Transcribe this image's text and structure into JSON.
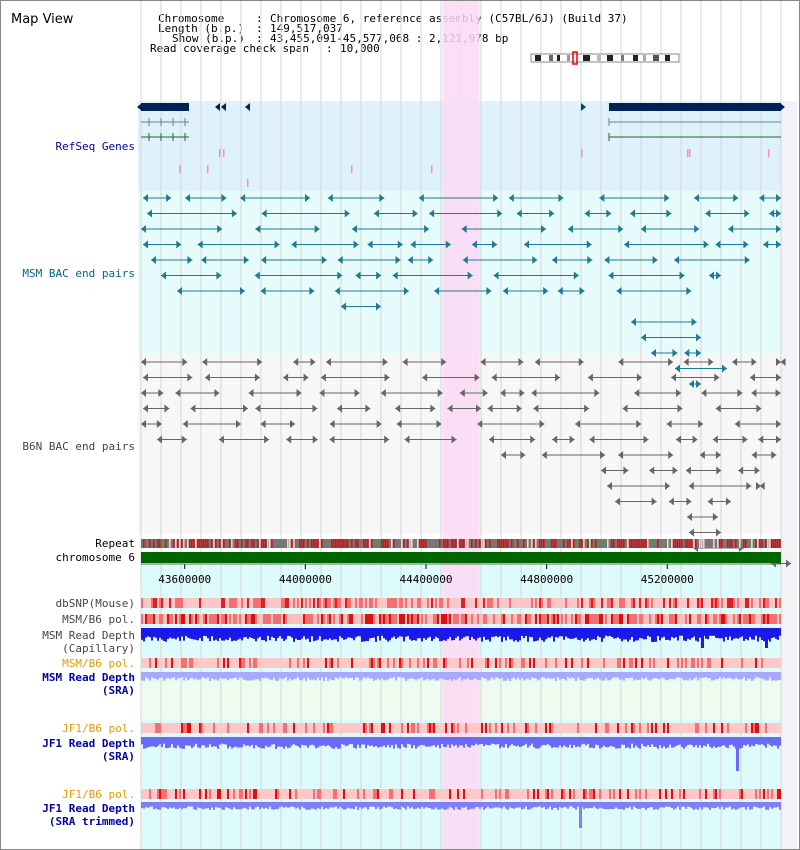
{
  "title": "Map View",
  "header": {
    "chromosome_label": "Chromosome",
    "chromosome_value": "Chromosome 6, reference assembly (C57BL/6J) (Build 37)",
    "length_label": "Length (b.p.)",
    "length_value": "149,517,037",
    "show_label": "Show (b.p.)",
    "show_value": "43,455,091-45,577,068 : 2,121,978 bp",
    "coverage_label": "Read coverage check span",
    "coverage_value": "10,000",
    "sep": ":"
  },
  "tracks": {
    "refseq": "RefSeq Genes",
    "msm_bac": "MSM BAC end pairs",
    "b6n_bac": "B6N BAC end pairs",
    "repeat": "Repeat",
    "chromosome": "chromosome 6",
    "dbsnp": "dbSNP(Mouse)",
    "msm_b6_pol": "MSM/B6 pol.",
    "msm_depth_cap_1": "MSM Read Depth",
    "msm_depth_cap_2": "(Capillary)",
    "msm_b6_pol_sra": "MSM/B6 pol.",
    "msm_depth_sra_1": "MSM Read Depth",
    "msm_depth_sra_2": "(SRA)",
    "jf1_b6_pol": "JF1/B6 pol.",
    "jf1_depth_1": "JF1 Read Depth",
    "jf1_depth_2": "(SRA)",
    "jf1_b6_pol_t": "JF1/B6 pol.",
    "jf1_depth_t_1": "JF1 Read Depth",
    "jf1_depth_t_2": "(SRA trimmed)"
  },
  "axis": {
    "ticks": [
      {
        "value": 43600000,
        "label": "43600000"
      },
      {
        "value": 44000000,
        "label": "44000000"
      },
      {
        "value": 44400000,
        "label": "44400000"
      },
      {
        "value": 44800000,
        "label": "44800000"
      },
      {
        "value": 45200000,
        "label": "45200000"
      }
    ],
    "range": [
      43455091,
      45577068
    ]
  },
  "highlight_range": [
    44455000,
    44578000
  ],
  "colors": {
    "refseq_bg": "#dff2fb",
    "msm_bg": "#e6fbfb",
    "b6n_bg": "#f7f7f7",
    "axis_bg": "#ddfbfb",
    "highlight": "#fcd9f5",
    "refseq_label": "#000099",
    "msm_label": "#006688",
    "b6n_label": "#444444",
    "orange_label": "#e89a00",
    "blue_label": "#0000aa",
    "gene_fill": "#002255",
    "chrom_green": "#006600"
  }
}
